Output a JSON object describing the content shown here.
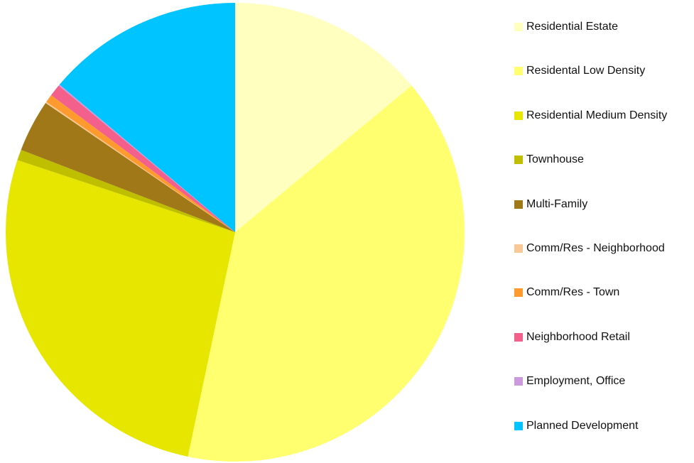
{
  "chart_data": {
    "type": "pie",
    "title": "",
    "start_angle_deg": 0,
    "direction": "clockwise",
    "legend_position": "right",
    "slices": [
      {
        "name": "Residential Estate",
        "value": 14.8,
        "color": "#FFFFC0"
      },
      {
        "name": "Residental Low Density",
        "value": 41.7,
        "color": "#FFFF70"
      },
      {
        "name": "Residential Medium Density",
        "value": 28.4,
        "color": "#E6E600"
      },
      {
        "name": "Townhouse",
        "value": 0.8,
        "color": "#BFBF00"
      },
      {
        "name": "Multi-Family",
        "value": 3.9,
        "color": "#A07818"
      },
      {
        "name": "Comm/Res - Neighborhood",
        "value": 0.1,
        "color": "#F8C896"
      },
      {
        "name": "Comm/Res - Town",
        "value": 0.6,
        "color": "#FF9A2E"
      },
      {
        "name": "Neighborhood Retail",
        "value": 0.9,
        "color": "#F4608C"
      },
      {
        "name": "Employment, Office",
        "value": 0.1,
        "color": "#CC99DD"
      },
      {
        "name": "Planned Development",
        "value": 14.7,
        "color": "#00C4FF"
      }
    ]
  }
}
